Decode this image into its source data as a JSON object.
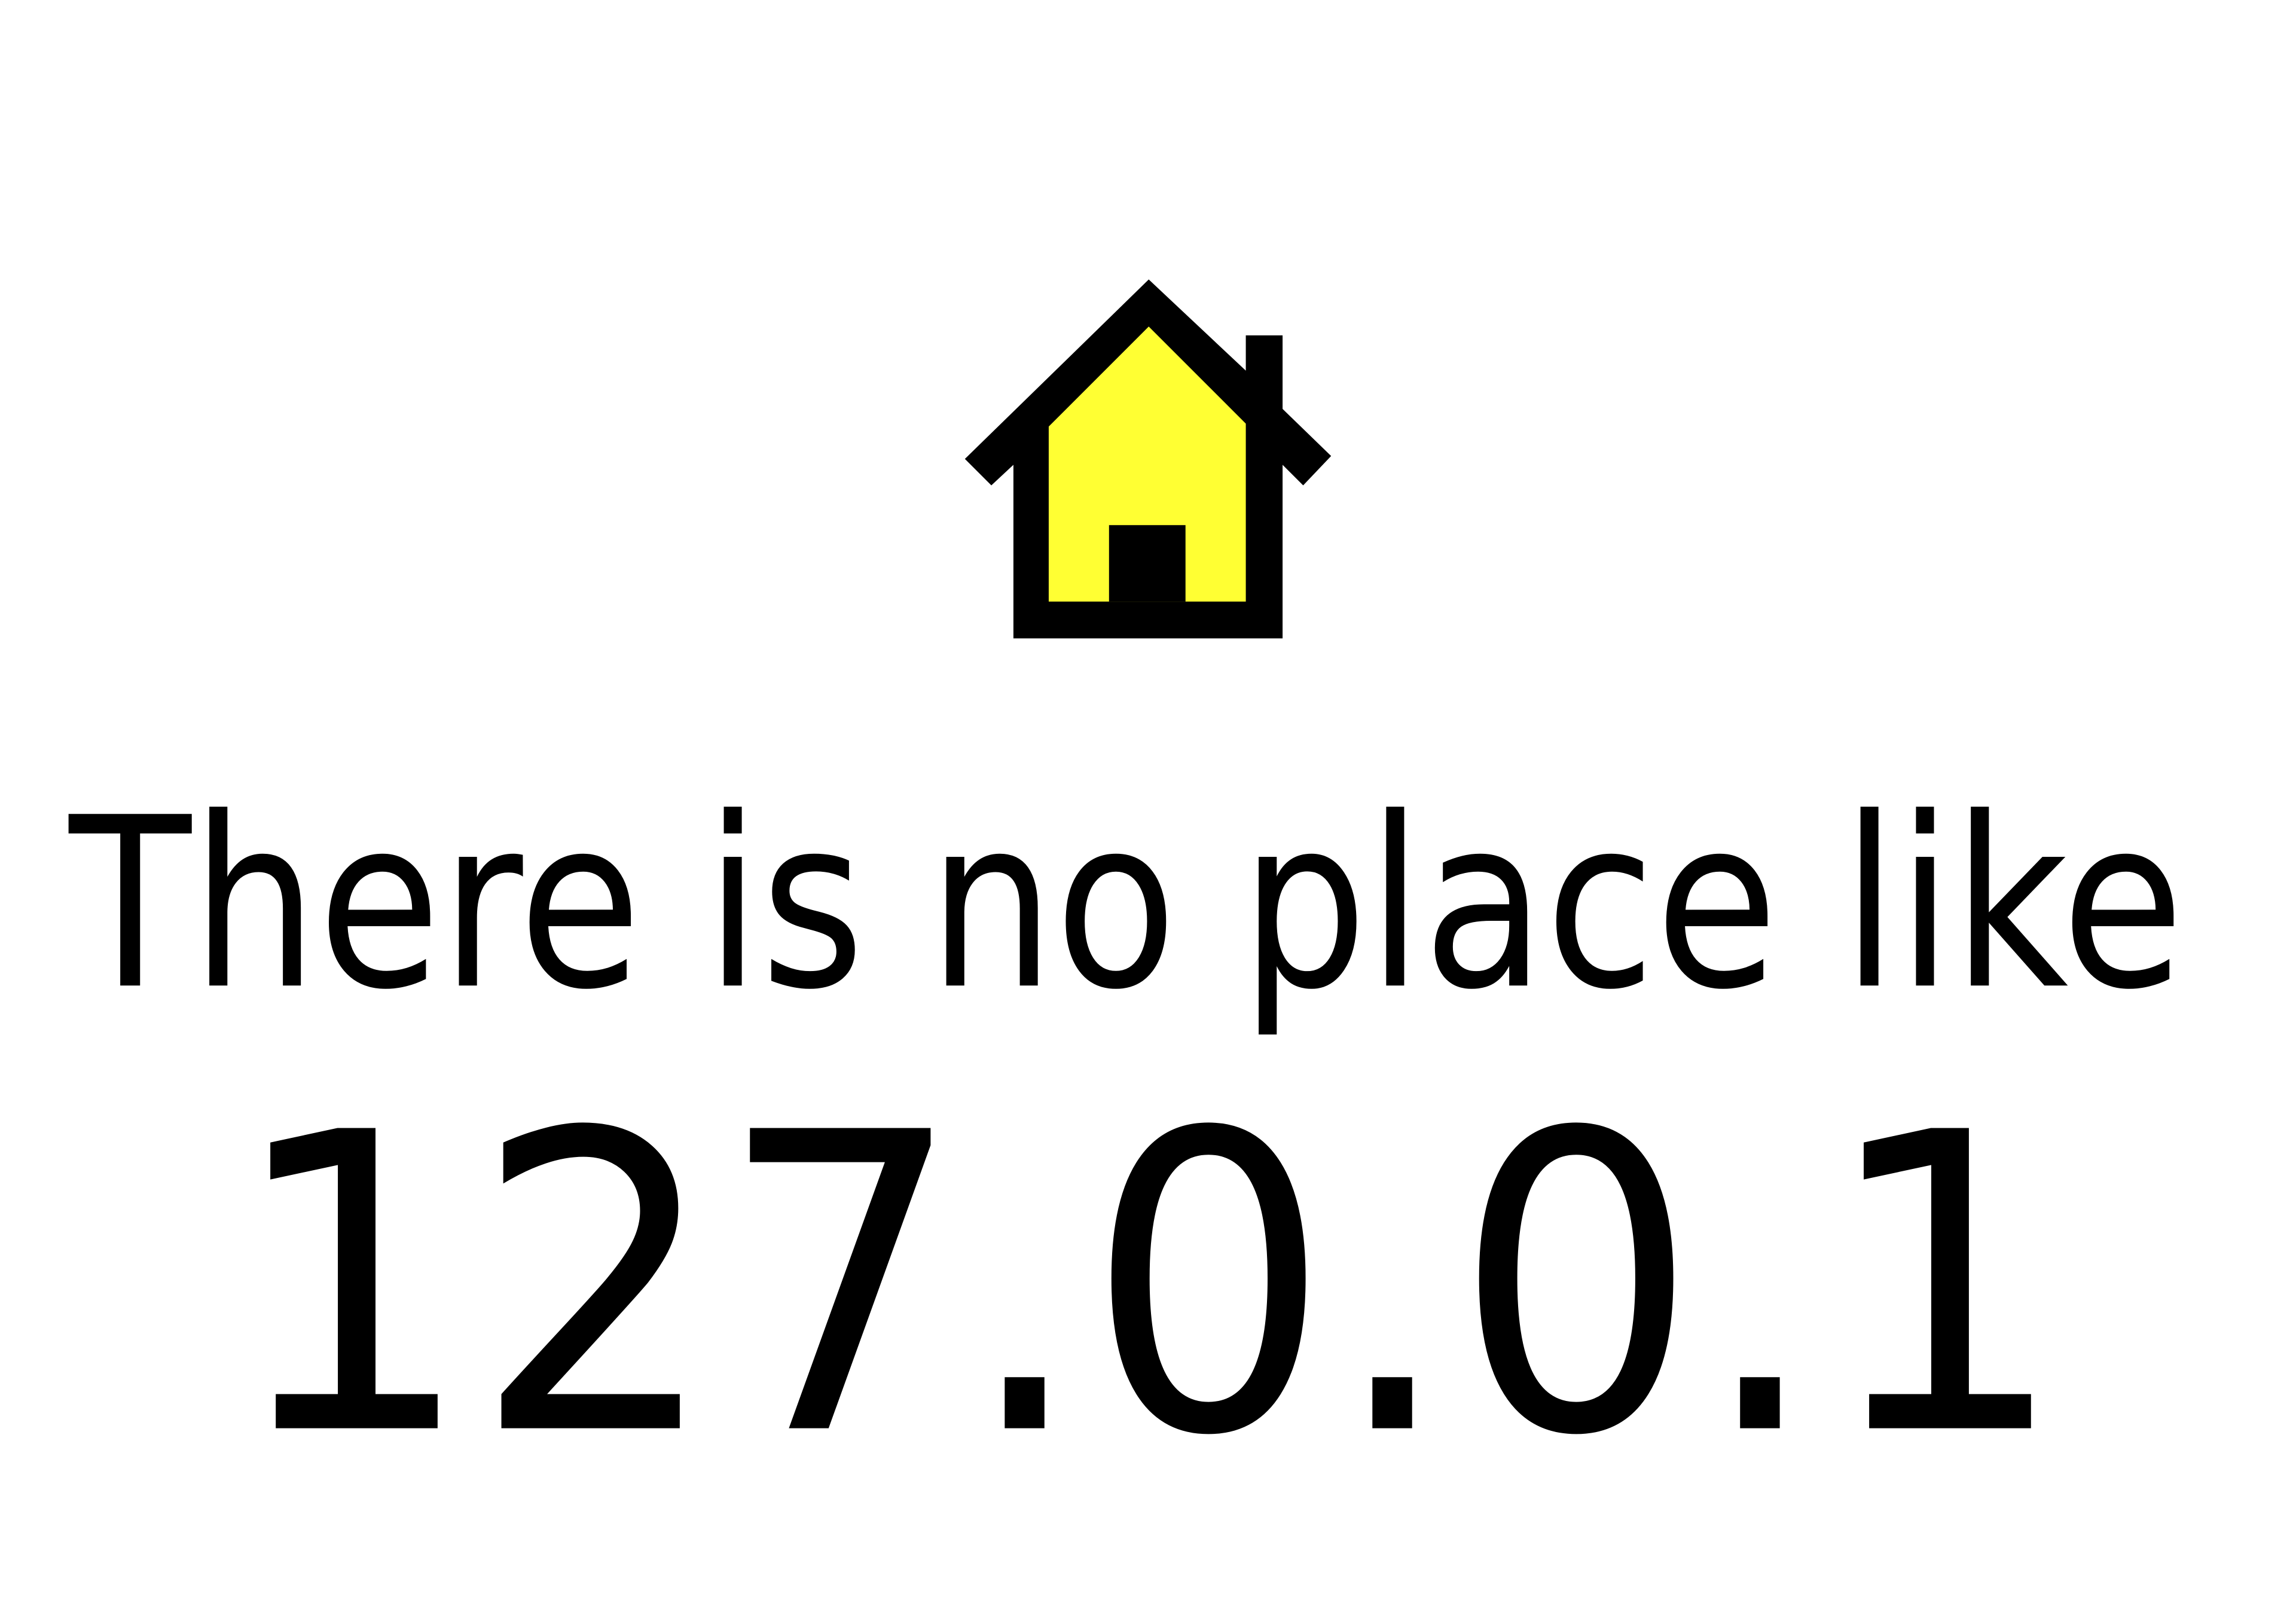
{
  "tagline": "There is no place like",
  "address": "127.0.0.1"
}
